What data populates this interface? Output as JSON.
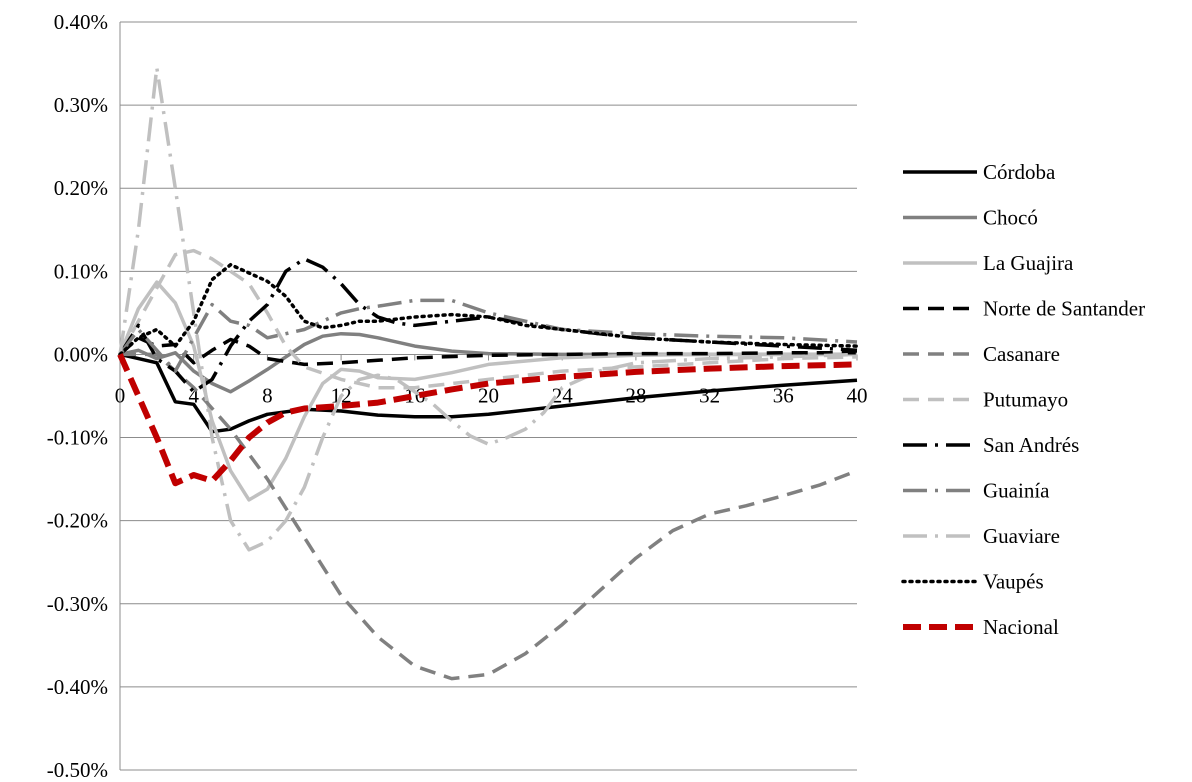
{
  "chart_data": {
    "type": "line",
    "title": "",
    "xlabel": "",
    "ylabel": "",
    "xlim": [
      0,
      40
    ],
    "ylim": [
      -0.5,
      0.4
    ],
    "x_ticks": [
      0,
      4,
      8,
      12,
      16,
      20,
      24,
      28,
      32,
      36,
      40
    ],
    "x_tick_labels": [
      "0",
      "4",
      "8",
      "12",
      "16",
      "20",
      "24",
      "28",
      "32",
      "36",
      "40"
    ],
    "y_ticks": [
      0.4,
      0.3,
      0.2,
      0.1,
      0.0,
      -0.1,
      -0.2,
      -0.3,
      -0.4,
      -0.5
    ],
    "y_tick_labels": [
      "0.40%",
      "0.30%",
      "0.20%",
      "0.10%",
      "0.00%",
      "-0.10%",
      "-0.20%",
      "-0.30%",
      "-0.40%",
      "-0.50%"
    ],
    "grid": "horizontal",
    "legend_position": "right",
    "series": [
      {
        "name": "Córdoba",
        "color": "#000000",
        "style": "solid",
        "points": [
          [
            0,
            0.0
          ],
          [
            1,
            -0.005
          ],
          [
            2,
            -0.01
          ],
          [
            3,
            -0.057
          ],
          [
            4,
            -0.06
          ],
          [
            5,
            -0.093
          ],
          [
            6,
            -0.09
          ],
          [
            7,
            -0.08
          ],
          [
            8,
            -0.072
          ],
          [
            10,
            -0.066
          ],
          [
            12,
            -0.068
          ],
          [
            14,
            -0.073
          ],
          [
            16,
            -0.075
          ],
          [
            18,
            -0.075
          ],
          [
            20,
            -0.072
          ],
          [
            24,
            -0.062
          ],
          [
            28,
            -0.052
          ],
          [
            32,
            -0.044
          ],
          [
            36,
            -0.037
          ],
          [
            40,
            -0.031
          ]
        ]
      },
      {
        "name": "Chocó",
        "color": "#808080",
        "style": "solid",
        "points": [
          [
            0,
            0.0
          ],
          [
            1,
            0.005
          ],
          [
            2,
            -0.005
          ],
          [
            3,
            0.002
          ],
          [
            4,
            -0.02
          ],
          [
            5,
            -0.035
          ],
          [
            6,
            -0.045
          ],
          [
            7,
            -0.032
          ],
          [
            8,
            -0.018
          ],
          [
            9,
            -0.003
          ],
          [
            10,
            0.012
          ],
          [
            11,
            0.022
          ],
          [
            12,
            0.025
          ],
          [
            13,
            0.024
          ],
          [
            14,
            0.02
          ],
          [
            16,
            0.01
          ],
          [
            18,
            0.004
          ],
          [
            20,
            0.001
          ],
          [
            24,
            0.0
          ],
          [
            28,
            0.0
          ],
          [
            32,
            0.0
          ],
          [
            36,
            0.0
          ],
          [
            40,
            0.0
          ]
        ]
      },
      {
        "name": "La Guajira",
        "color": "#c0c0c0",
        "style": "solid",
        "points": [
          [
            0,
            0.0
          ],
          [
            1,
            0.055
          ],
          [
            2,
            0.087
          ],
          [
            3,
            0.062
          ],
          [
            4,
            0.01
          ],
          [
            5,
            -0.08
          ],
          [
            6,
            -0.14
          ],
          [
            7,
            -0.175
          ],
          [
            8,
            -0.162
          ],
          [
            9,
            -0.125
          ],
          [
            10,
            -0.075
          ],
          [
            11,
            -0.035
          ],
          [
            12,
            -0.018
          ],
          [
            13,
            -0.02
          ],
          [
            14,
            -0.028
          ],
          [
            16,
            -0.03
          ],
          [
            18,
            -0.022
          ],
          [
            20,
            -0.012
          ],
          [
            24,
            -0.004
          ],
          [
            28,
            -0.001
          ],
          [
            32,
            0.0
          ],
          [
            36,
            0.0
          ],
          [
            40,
            0.0
          ]
        ]
      },
      {
        "name": "Norte de Santander",
        "color": "#000000",
        "style": "dash",
        "points": [
          [
            0,
            0.0
          ],
          [
            1,
            0.02
          ],
          [
            2,
            0.01
          ],
          [
            3,
            0.012
          ],
          [
            4,
            -0.01
          ],
          [
            5,
            0.005
          ],
          [
            6,
            0.018
          ],
          [
            7,
            0.01
          ],
          [
            8,
            -0.005
          ],
          [
            10,
            -0.012
          ],
          [
            12,
            -0.01
          ],
          [
            14,
            -0.007
          ],
          [
            16,
            -0.004
          ],
          [
            20,
            -0.001
          ],
          [
            24,
            0.0
          ],
          [
            28,
            0.001
          ],
          [
            32,
            0.001
          ],
          [
            36,
            0.002
          ],
          [
            40,
            0.002
          ]
        ]
      },
      {
        "name": "Casanare",
        "color": "#808080",
        "style": "dash",
        "points": [
          [
            0,
            0.0
          ],
          [
            2,
            0.0
          ],
          [
            3,
            -0.02
          ],
          [
            4,
            -0.04
          ],
          [
            6,
            -0.09
          ],
          [
            8,
            -0.15
          ],
          [
            10,
            -0.22
          ],
          [
            12,
            -0.29
          ],
          [
            14,
            -0.34
          ],
          [
            16,
            -0.375
          ],
          [
            18,
            -0.39
          ],
          [
            20,
            -0.385
          ],
          [
            22,
            -0.36
          ],
          [
            24,
            -0.325
          ],
          [
            26,
            -0.285
          ],
          [
            28,
            -0.245
          ],
          [
            30,
            -0.212
          ],
          [
            32,
            -0.192
          ],
          [
            34,
            -0.182
          ],
          [
            36,
            -0.17
          ],
          [
            38,
            -0.157
          ],
          [
            40,
            -0.14
          ]
        ]
      },
      {
        "name": "Putumayo",
        "color": "#c0c0c0",
        "style": "dash",
        "points": [
          [
            0,
            0.0
          ],
          [
            1,
            0.04
          ],
          [
            2,
            0.08
          ],
          [
            3,
            0.12
          ],
          [
            4,
            0.125
          ],
          [
            5,
            0.115
          ],
          [
            6,
            0.1
          ],
          [
            7,
            0.085
          ],
          [
            8,
            0.05
          ],
          [
            9,
            0.01
          ],
          [
            10,
            -0.015
          ],
          [
            12,
            -0.03
          ],
          [
            14,
            -0.04
          ],
          [
            16,
            -0.04
          ],
          [
            18,
            -0.035
          ],
          [
            20,
            -0.03
          ],
          [
            24,
            -0.02
          ],
          [
            28,
            -0.015
          ],
          [
            32,
            -0.01
          ],
          [
            36,
            -0.005
          ],
          [
            40,
            -0.003
          ]
        ]
      },
      {
        "name": "San Andrés",
        "color": "#000000",
        "style": "dashdot",
        "points": [
          [
            0,
            0.0
          ],
          [
            1,
            0.035
          ],
          [
            2,
            -0.005
          ],
          [
            3,
            -0.02
          ],
          [
            4,
            -0.045
          ],
          [
            5,
            -0.03
          ],
          [
            6,
            0.01
          ],
          [
            7,
            0.04
          ],
          [
            8,
            0.06
          ],
          [
            9,
            0.1
          ],
          [
            10,
            0.115
          ],
          [
            11,
            0.105
          ],
          [
            12,
            0.085
          ],
          [
            13,
            0.06
          ],
          [
            14,
            0.045
          ],
          [
            15,
            0.038
          ],
          [
            16,
            0.035
          ],
          [
            18,
            0.04
          ],
          [
            20,
            0.045
          ],
          [
            24,
            0.03
          ],
          [
            28,
            0.02
          ],
          [
            32,
            0.015
          ],
          [
            36,
            0.01
          ],
          [
            40,
            0.005
          ]
        ]
      },
      {
        "name": "Guainía",
        "color": "#808080",
        "style": "dashdot",
        "points": [
          [
            0,
            0.0
          ],
          [
            1,
            0.03
          ],
          [
            2,
            0.005
          ],
          [
            3,
            -0.02
          ],
          [
            4,
            0.02
          ],
          [
            5,
            0.06
          ],
          [
            6,
            0.04
          ],
          [
            7,
            0.035
          ],
          [
            8,
            0.02
          ],
          [
            9,
            0.025
          ],
          [
            10,
            0.03
          ],
          [
            11,
            0.04
          ],
          [
            12,
            0.05
          ],
          [
            13,
            0.055
          ],
          [
            14,
            0.058
          ],
          [
            16,
            0.065
          ],
          [
            18,
            0.065
          ],
          [
            20,
            0.05
          ],
          [
            22,
            0.04
          ],
          [
            24,
            0.03
          ],
          [
            28,
            0.025
          ],
          [
            32,
            0.022
          ],
          [
            36,
            0.02
          ],
          [
            40,
            0.015
          ]
        ]
      },
      {
        "name": "Guaviare",
        "color": "#c0c0c0",
        "style": "dashdot",
        "points": [
          [
            0,
            0.0
          ],
          [
            1,
            0.15
          ],
          [
            2,
            0.345
          ],
          [
            3,
            0.2
          ],
          [
            4,
            0.05
          ],
          [
            5,
            -0.1
          ],
          [
            6,
            -0.2
          ],
          [
            7,
            -0.235
          ],
          [
            8,
            -0.225
          ],
          [
            9,
            -0.2
          ],
          [
            10,
            -0.16
          ],
          [
            11,
            -0.1
          ],
          [
            12,
            -0.05
          ],
          [
            13,
            -0.03
          ],
          [
            14,
            -0.025
          ],
          [
            15,
            -0.03
          ],
          [
            16,
            -0.045
          ],
          [
            17,
            -0.06
          ],
          [
            18,
            -0.08
          ],
          [
            19,
            -0.098
          ],
          [
            20,
            -0.108
          ],
          [
            21,
            -0.1
          ],
          [
            22,
            -0.09
          ],
          [
            23,
            -0.07
          ],
          [
            24,
            -0.04
          ],
          [
            26,
            -0.02
          ],
          [
            28,
            -0.01
          ],
          [
            32,
            -0.005
          ],
          [
            36,
            -0.003
          ],
          [
            40,
            0.0
          ]
        ]
      },
      {
        "name": "Vaupés",
        "color": "#000000",
        "style": "dot",
        "points": [
          [
            0,
            0.0
          ],
          [
            1,
            0.02
          ],
          [
            2,
            0.03
          ],
          [
            3,
            0.01
          ],
          [
            4,
            0.04
          ],
          [
            5,
            0.09
          ],
          [
            6,
            0.108
          ],
          [
            7,
            0.098
          ],
          [
            8,
            0.088
          ],
          [
            9,
            0.07
          ],
          [
            10,
            0.04
          ],
          [
            11,
            0.032
          ],
          [
            12,
            0.035
          ],
          [
            13,
            0.04
          ],
          [
            14,
            0.04
          ],
          [
            16,
            0.045
          ],
          [
            18,
            0.048
          ],
          [
            20,
            0.045
          ],
          [
            22,
            0.035
          ],
          [
            24,
            0.03
          ],
          [
            28,
            0.02
          ],
          [
            32,
            0.015
          ],
          [
            36,
            0.012
          ],
          [
            40,
            0.01
          ]
        ]
      },
      {
        "name": "Nacional",
        "color": "#c00000",
        "style": "dash-bold",
        "points": [
          [
            0,
            0.0
          ],
          [
            1,
            -0.05
          ],
          [
            2,
            -0.1
          ],
          [
            3,
            -0.155
          ],
          [
            4,
            -0.145
          ],
          [
            5,
            -0.152
          ],
          [
            6,
            -0.128
          ],
          [
            7,
            -0.1
          ],
          [
            8,
            -0.082
          ],
          [
            9,
            -0.07
          ],
          [
            10,
            -0.065
          ],
          [
            12,
            -0.062
          ],
          [
            14,
            -0.058
          ],
          [
            16,
            -0.05
          ],
          [
            18,
            -0.042
          ],
          [
            20,
            -0.035
          ],
          [
            24,
            -0.027
          ],
          [
            28,
            -0.021
          ],
          [
            32,
            -0.017
          ],
          [
            36,
            -0.014
          ],
          [
            40,
            -0.012
          ]
        ]
      }
    ]
  }
}
